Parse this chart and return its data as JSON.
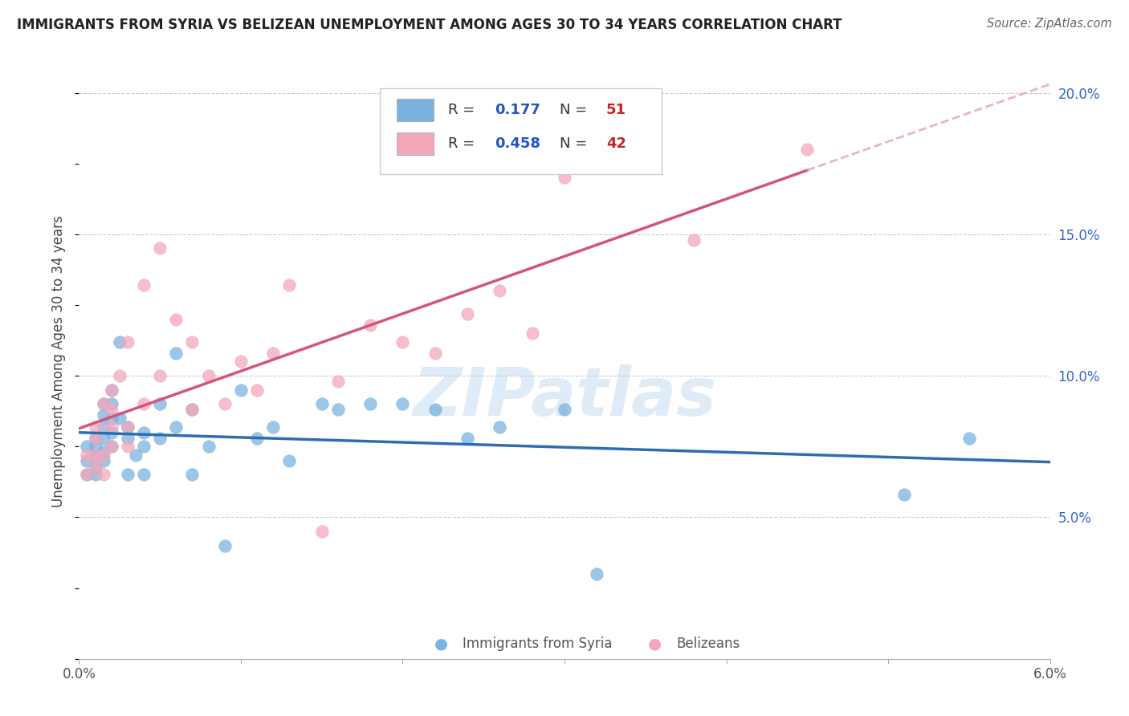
{
  "title": "IMMIGRANTS FROM SYRIA VS BELIZEAN UNEMPLOYMENT AMONG AGES 30 TO 34 YEARS CORRELATION CHART",
  "source": "Source: ZipAtlas.com",
  "ylabel": "Unemployment Among Ages 30 to 34 years",
  "xmin": 0.0,
  "xmax": 0.06,
  "ymin": 0.0,
  "ymax": 0.21,
  "y_ticks_right": [
    0.05,
    0.1,
    0.15,
    0.2
  ],
  "y_tick_labels_right": [
    "5.0%",
    "10.0%",
    "15.0%",
    "20.0%"
  ],
  "blue_color": "#7ab3e0",
  "pink_color": "#f4a7b9",
  "blue_line_color": "#2e6db4",
  "pink_line_color": "#d4547a",
  "pink_dash_color": "#e8a0b8",
  "watermark": "ZIPatlas",
  "blue_R": "0.177",
  "blue_N": "51",
  "pink_R": "0.458",
  "pink_N": "42",
  "blue_scatter_x": [
    0.0005,
    0.0005,
    0.0005,
    0.001,
    0.001,
    0.001,
    0.001,
    0.001,
    0.0015,
    0.0015,
    0.0015,
    0.0015,
    0.0015,
    0.0015,
    0.002,
    0.002,
    0.002,
    0.002,
    0.002,
    0.0025,
    0.0025,
    0.003,
    0.003,
    0.003,
    0.0035,
    0.004,
    0.004,
    0.004,
    0.005,
    0.005,
    0.006,
    0.006,
    0.007,
    0.007,
    0.008,
    0.009,
    0.01,
    0.011,
    0.012,
    0.013,
    0.015,
    0.016,
    0.018,
    0.02,
    0.022,
    0.024,
    0.026,
    0.03,
    0.032,
    0.051,
    0.055
  ],
  "blue_scatter_y": [
    0.065,
    0.07,
    0.075,
    0.068,
    0.072,
    0.075,
    0.078,
    0.065,
    0.07,
    0.073,
    0.078,
    0.082,
    0.086,
    0.09,
    0.075,
    0.08,
    0.085,
    0.09,
    0.095,
    0.112,
    0.085,
    0.078,
    0.082,
    0.065,
    0.072,
    0.075,
    0.08,
    0.065,
    0.09,
    0.078,
    0.108,
    0.082,
    0.088,
    0.065,
    0.075,
    0.04,
    0.095,
    0.078,
    0.082,
    0.07,
    0.09,
    0.088,
    0.09,
    0.09,
    0.088,
    0.078,
    0.082,
    0.088,
    0.03,
    0.058,
    0.078
  ],
  "pink_scatter_x": [
    0.0005,
    0.0005,
    0.001,
    0.001,
    0.001,
    0.001,
    0.0015,
    0.0015,
    0.0015,
    0.002,
    0.002,
    0.002,
    0.002,
    0.0025,
    0.003,
    0.003,
    0.003,
    0.004,
    0.004,
    0.005,
    0.005,
    0.006,
    0.007,
    0.007,
    0.008,
    0.009,
    0.01,
    0.011,
    0.012,
    0.013,
    0.015,
    0.016,
    0.018,
    0.02,
    0.022,
    0.024,
    0.026,
    0.028,
    0.03,
    0.032,
    0.038,
    0.045
  ],
  "pink_scatter_y": [
    0.065,
    0.072,
    0.068,
    0.072,
    0.078,
    0.082,
    0.065,
    0.072,
    0.09,
    0.075,
    0.082,
    0.088,
    0.095,
    0.1,
    0.075,
    0.082,
    0.112,
    0.09,
    0.132,
    0.1,
    0.145,
    0.12,
    0.088,
    0.112,
    0.1,
    0.09,
    0.105,
    0.095,
    0.108,
    0.132,
    0.045,
    0.098,
    0.118,
    0.112,
    0.108,
    0.122,
    0.13,
    0.115,
    0.17,
    0.182,
    0.148,
    0.18
  ]
}
